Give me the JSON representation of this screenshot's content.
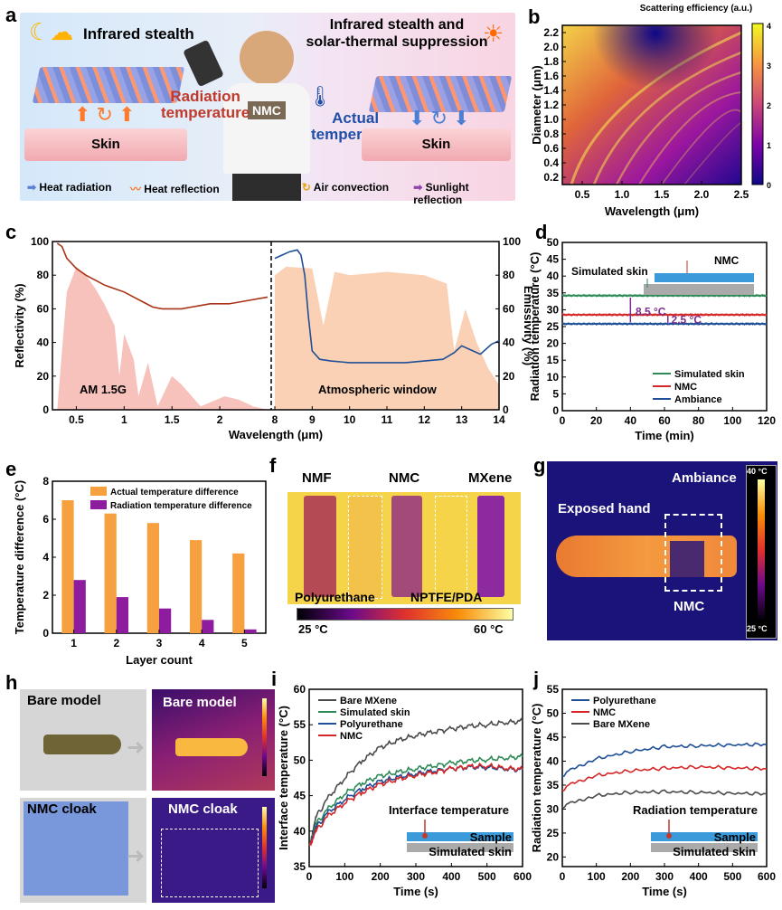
{
  "panels": {
    "a": {
      "label": "a",
      "left_title": "Infrared stealth",
      "right_title_line1": "Infrared stealth and",
      "right_title_line2": "solar-thermal suppression",
      "radiation_temp_line1": "Radiation",
      "radiation_temp_line2": "temperature",
      "actual_temp_line1": "Actual",
      "actual_temp_line2": "temperature",
      "nmc_tag": "NMC",
      "skin_left": "Skin",
      "skin_right": "Skin",
      "legend": [
        "Heat radiation",
        "Heat reflection",
        "Air convection",
        "Sunlight reflection"
      ],
      "colors": {
        "radiation": "#c0392b",
        "actual": "#1f4fa8"
      }
    },
    "g": {
      "label": "g",
      "exposed_hand": "Exposed hand",
      "ambiance": "Ambiance",
      "nmc": "NMC",
      "scale_max": "40 °C",
      "scale_min": "25 °C"
    },
    "h": {
      "label": "h",
      "bare_model": "Bare model",
      "bare_model_ir": "Bare model",
      "nmc_cloak": "NMC cloak",
      "nmc_cloak_ir": "NMC cloak",
      "ir_scale_top": "43.3",
      "ir_scale_bottom": "25.3"
    },
    "f": {
      "label": "f",
      "sample_labels": [
        "NMF",
        "NMC",
        "MXene"
      ],
      "polyurethane": "Polyurethane",
      "nptfe": "NPTFE/PDA",
      "scale_min": "25 °C",
      "scale_max": "60 °C"
    }
  },
  "chart_data": [
    {
      "id": "b",
      "label": "b",
      "type": "heatmap",
      "title": "Scattering efficiency (a.u.)",
      "xlabel": "Wavelength (μm)",
      "ylabel": "Diameter (μm)",
      "xlim": [
        0.25,
        2.5
      ],
      "ylim": [
        0.1,
        2.3
      ],
      "xticks": [
        "0.5",
        "1.0",
        "1.5",
        "2.0",
        "2.5"
      ],
      "yticks": [
        "0.2",
        "0.4",
        "0.6",
        "0.8",
        "1.0",
        "1.2",
        "1.4",
        "1.6",
        "1.8",
        "2.0",
        "2.2"
      ],
      "colorbar": {
        "min": 0,
        "max": 4,
        "ticks": [
          "0",
          "1",
          "2",
          "3",
          "4"
        ]
      }
    },
    {
      "id": "c",
      "label": "c",
      "type": "line",
      "xlabel": "Wavelength (μm)",
      "ylabel_left": "Reflectivity (%)",
      "ylabel_right": "Emissivity (%)",
      "ylim": [
        0,
        100
      ],
      "yticks": [
        "0",
        "20",
        "40",
        "60",
        "80",
        "100"
      ],
      "xticks_left": [
        "0.5",
        "1",
        "1.5",
        "2"
      ],
      "xticks_right": [
        "8",
        "9",
        "10",
        "11",
        "12",
        "13",
        "14"
      ],
      "annotations": [
        "AM 1.5G",
        "Atmospheric window"
      ],
      "series": [
        {
          "name": "Reflectivity",
          "color": "#a83216",
          "x": [
            0.3,
            0.35,
            0.4,
            0.5,
            0.6,
            0.7,
            0.8,
            0.9,
            1.0,
            1.1,
            1.2,
            1.3,
            1.4,
            1.5,
            1.6,
            1.7,
            1.8,
            1.9,
            2.0,
            2.1,
            2.2,
            2.3,
            2.5
          ],
          "y": [
            99,
            97,
            90,
            84,
            80,
            77,
            74,
            72,
            70,
            67,
            64,
            61,
            60,
            60,
            60,
            61,
            62,
            63,
            63,
            63,
            64,
            65,
            67
          ]
        },
        {
          "name": "Emissivity",
          "color": "#1f4f96",
          "x": [
            8.0,
            8.2,
            8.4,
            8.6,
            8.7,
            8.8,
            8.9,
            9.0,
            9.2,
            9.5,
            10,
            10.5,
            11,
            11.5,
            12,
            12.5,
            12.8,
            13.0,
            13.2,
            13.5,
            13.8,
            14.0
          ],
          "y": [
            90,
            92,
            94,
            95,
            92,
            80,
            55,
            35,
            30,
            29,
            28,
            28,
            28,
            28,
            29,
            30,
            34,
            38,
            36,
            33,
            39,
            41
          ]
        }
      ]
    },
    {
      "id": "d",
      "label": "d",
      "type": "line",
      "xlabel": "Time (min)",
      "ylabel": "Radiation temperature (°C)",
      "xlim": [
        0,
        120
      ],
      "ylim": [
        0,
        50
      ],
      "xticks": [
        "0",
        "20",
        "40",
        "60",
        "80",
        "100",
        "120"
      ],
      "yticks": [
        "0",
        "5",
        "10",
        "15",
        "20",
        "25",
        "30",
        "35",
        "40",
        "45",
        "50"
      ],
      "annotations": [
        "8.5 °C",
        "2.5 °C",
        "Simulated skin",
        "NMC"
      ],
      "series": [
        {
          "name": "Simulated skin",
          "color": "#2e8b57",
          "value": 34.2
        },
        {
          "name": "NMC",
          "color": "#d62728",
          "value": 28.5
        },
        {
          "name": "Ambiance",
          "color": "#1f4f96",
          "value": 25.8
        }
      ]
    },
    {
      "id": "e",
      "label": "e",
      "type": "bar",
      "xlabel": "Layer count",
      "ylabel": "Temperature difference (°C)",
      "categories": [
        "1",
        "2",
        "3",
        "4",
        "5"
      ],
      "ylim": [
        0,
        8
      ],
      "yticks": [
        "0",
        "2",
        "4",
        "6",
        "8"
      ],
      "series": [
        {
          "name": "Actual temperature difference",
          "color": "#f7a040",
          "values": [
            7.0,
            6.3,
            5.8,
            4.9,
            4.2
          ]
        },
        {
          "name": "Radiation temperature difference",
          "color": "#8e1c9e",
          "values": [
            2.8,
            1.9,
            1.3,
            0.7,
            0.2
          ]
        }
      ]
    },
    {
      "id": "i",
      "label": "i",
      "type": "line",
      "xlabel": "Time (s)",
      "ylabel": "Interface temperature (°C)",
      "xlim": [
        0,
        600
      ],
      "ylim": [
        35,
        60
      ],
      "xticks": [
        "0",
        "100",
        "200",
        "300",
        "400",
        "500",
        "600"
      ],
      "yticks": [
        "35",
        "40",
        "45",
        "50",
        "55",
        "60"
      ],
      "inset_title": "Interface temperature",
      "inset_labels": [
        "Sample",
        "Simulated skin"
      ],
      "series": [
        {
          "name": "Bare MXene",
          "color": "#4a4a4a",
          "x": [
            0,
            20,
            50,
            100,
            150,
            200,
            250,
            300,
            350,
            400,
            450,
            500,
            550,
            600
          ],
          "y": [
            38,
            42,
            44.5,
            47.5,
            50,
            51.8,
            52.8,
            53.5,
            54,
            54.4,
            54.8,
            55.0,
            55.3,
            55.5
          ]
        },
        {
          "name": "Simulated skin",
          "color": "#2e8b57",
          "x": [
            0,
            20,
            50,
            100,
            150,
            200,
            250,
            300,
            350,
            400,
            450,
            500,
            550,
            600
          ],
          "y": [
            38,
            41,
            43,
            45.3,
            46.8,
            47.8,
            48.3,
            48.8,
            49.2,
            49.6,
            49.9,
            50.1,
            50.3,
            50.5
          ]
        },
        {
          "name": "Polyurethane",
          "color": "#1f4f96",
          "x": [
            0,
            20,
            50,
            100,
            150,
            200,
            250,
            300,
            350,
            400,
            450,
            500,
            550,
            600
          ],
          "y": [
            38,
            40.5,
            42.5,
            44.5,
            46,
            47,
            47.6,
            48.1,
            48.5,
            48.8,
            49,
            49,
            48.8,
            48.6
          ]
        },
        {
          "name": "NMC",
          "color": "#d62728",
          "x": [
            0,
            20,
            50,
            100,
            150,
            200,
            250,
            300,
            350,
            400,
            450,
            500,
            550,
            600
          ],
          "y": [
            38,
            40,
            42,
            44,
            45.5,
            46.6,
            47.3,
            47.9,
            48.3,
            48.8,
            49.1,
            49.2,
            48.9,
            48.7
          ]
        }
      ]
    },
    {
      "id": "j",
      "label": "j",
      "type": "line",
      "xlabel": "Time (s)",
      "ylabel": "Radiation temperature (°C)",
      "xlim": [
        0,
        600
      ],
      "ylim": [
        18,
        55
      ],
      "xticks": [
        "0",
        "100",
        "200",
        "300",
        "400",
        "500",
        "600"
      ],
      "yticks": [
        "20",
        "25",
        "30",
        "35",
        "40",
        "45",
        "50",
        "55"
      ],
      "inset_title": "Radiation temperature",
      "inset_labels": [
        "Sample",
        "Simulated skin"
      ],
      "series": [
        {
          "name": "Polyurethane",
          "color": "#1f4f96",
          "x": [
            0,
            30,
            100,
            200,
            300,
            400,
            500,
            600
          ],
          "y": [
            37,
            38.5,
            40.5,
            42,
            43,
            43.2,
            43.4,
            43.5
          ]
        },
        {
          "name": "NMC",
          "color": "#d62728",
          "x": [
            0,
            30,
            100,
            200,
            300,
            400,
            500,
            600
          ],
          "y": [
            34,
            35.5,
            37,
            38,
            38.5,
            38.8,
            38.6,
            38.4
          ]
        },
        {
          "name": "Bare MXene",
          "color": "#4a4a4a",
          "x": [
            0,
            30,
            100,
            200,
            300,
            400,
            500,
            600
          ],
          "y": [
            30.5,
            31.5,
            32.8,
            33.5,
            33.6,
            33.5,
            33.3,
            33.2
          ]
        }
      ]
    }
  ]
}
